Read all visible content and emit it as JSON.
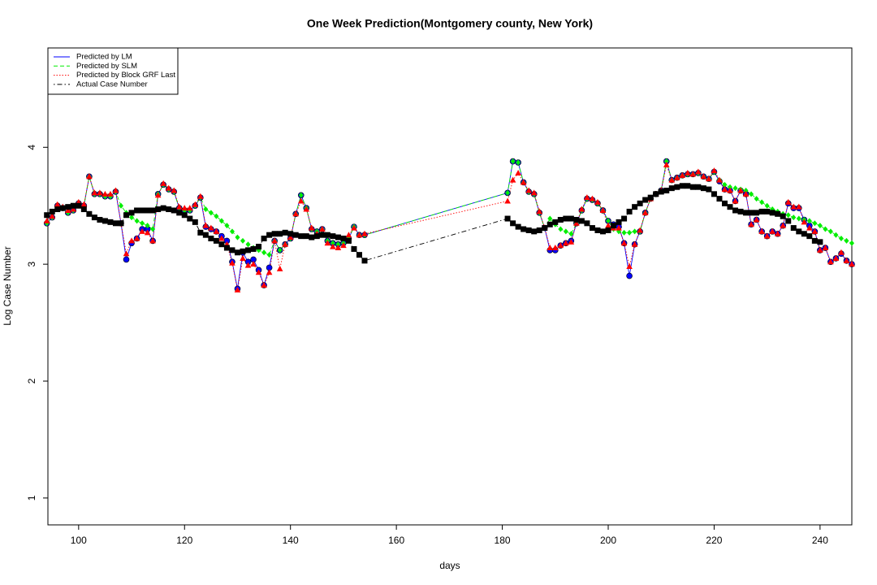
{
  "chart_data": {
    "type": "line",
    "title": "One Week Prediction(Montgomery county, New York)",
    "xlabel": "days",
    "ylabel": "Log Case Number",
    "xlim": [
      94.2,
      246
    ],
    "ylim": [
      0.77,
      4.85
    ],
    "xticks": [
      100,
      120,
      140,
      160,
      180,
      200,
      220,
      240
    ],
    "yticks": [
      1,
      2,
      3,
      4
    ],
    "legend": "top-left",
    "grid": false,
    "x": [
      94,
      95,
      96,
      97,
      98,
      99,
      100,
      101,
      102,
      103,
      104,
      105,
      106,
      107,
      108,
      109,
      110,
      111,
      112,
      113,
      114,
      115,
      116,
      117,
      118,
      119,
      120,
      121,
      122,
      123,
      124,
      125,
      126,
      127,
      128,
      129,
      130,
      131,
      132,
      133,
      134,
      135,
      136,
      137,
      138,
      139,
      140,
      141,
      142,
      143,
      144,
      145,
      146,
      147,
      148,
      149,
      150,
      151,
      152,
      153,
      154,
      181,
      182,
      183,
      184,
      185,
      186,
      187,
      188,
      189,
      190,
      191,
      192,
      193,
      194,
      195,
      196,
      197,
      198,
      199,
      200,
      201,
      202,
      203,
      204,
      205,
      206,
      207,
      208,
      209,
      210,
      211,
      212,
      213,
      214,
      215,
      216,
      217,
      218,
      219,
      220,
      221,
      222,
      223,
      224,
      225,
      226,
      227,
      228,
      229,
      230,
      231,
      232,
      233,
      234,
      235,
      236,
      237,
      238,
      239,
      240,
      241,
      242,
      243,
      244,
      245,
      246
    ],
    "series": [
      {
        "name": "Predicted by LM",
        "color": "#0000ff",
        "dash": "solid",
        "marker": "circle",
        "values": [
          3.35,
          3.4,
          3.5,
          3.48,
          3.44,
          3.46,
          3.52,
          3.5,
          3.75,
          3.6,
          3.6,
          3.58,
          3.58,
          3.62,
          3.35,
          3.04,
          3.18,
          3.22,
          3.3,
          3.3,
          3.2,
          3.6,
          3.68,
          3.64,
          3.62,
          3.48,
          3.46,
          3.46,
          3.5,
          3.57,
          3.32,
          3.3,
          3.28,
          3.24,
          3.2,
          3.02,
          2.79,
          3.1,
          3.02,
          3.04,
          2.95,
          2.82,
          2.97,
          3.2,
          3.12,
          3.17,
          3.22,
          3.43,
          3.59,
          3.48,
          3.3,
          3.28,
          3.3,
          3.2,
          3.18,
          3.17,
          3.18,
          3.22,
          3.32,
          3.25,
          3.25,
          3.61,
          3.88,
          3.87,
          3.7,
          3.62,
          3.6,
          3.44,
          3.31,
          3.12,
          3.12,
          3.16,
          3.18,
          3.2,
          3.35,
          3.46,
          3.56,
          3.55,
          3.52,
          3.46,
          3.37,
          3.34,
          3.32,
          3.18,
          2.9,
          3.17,
          3.28,
          3.44,
          3.56,
          3.6,
          3.63,
          3.88,
          3.72,
          3.74,
          3.76,
          3.77,
          3.77,
          3.78,
          3.75,
          3.73,
          3.79,
          3.71,
          3.64,
          3.63,
          3.54,
          3.63,
          3.6,
          3.34,
          3.38,
          3.28,
          3.24,
          3.28,
          3.26,
          3.33,
          3.52,
          3.48,
          3.48,
          3.38,
          3.33,
          3.28,
          3.12,
          3.14,
          3.02,
          3.05,
          3.09,
          3.03,
          3.0
        ]
      },
      {
        "name": "Predicted by SLM",
        "color": "#00ee00",
        "dash": "dashed",
        "marker": "diamond",
        "values": [
          3.35,
          3.4,
          3.5,
          3.48,
          3.44,
          3.46,
          3.52,
          3.5,
          3.75,
          3.6,
          3.6,
          3.58,
          3.58,
          3.62,
          3.5,
          3.44,
          3.4,
          3.37,
          3.35,
          3.33,
          3.3,
          3.6,
          3.68,
          3.64,
          3.62,
          3.48,
          3.46,
          3.46,
          3.5,
          3.57,
          3.47,
          3.44,
          3.41,
          3.37,
          3.33,
          3.28,
          3.23,
          3.2,
          3.17,
          3.14,
          3.12,
          3.1,
          3.08,
          3.2,
          3.12,
          3.17,
          3.22,
          3.43,
          3.59,
          3.48,
          3.3,
          3.28,
          3.3,
          3.2,
          3.18,
          3.17,
          3.18,
          3.22,
          3.32,
          3.25,
          3.25,
          3.61,
          3.88,
          3.87,
          3.7,
          3.62,
          3.6,
          3.44,
          3.31,
          3.39,
          3.34,
          3.3,
          3.28,
          3.26,
          3.35,
          3.46,
          3.56,
          3.55,
          3.52,
          3.46,
          3.37,
          3.3,
          3.28,
          3.27,
          3.27,
          3.28,
          3.28,
          3.44,
          3.56,
          3.6,
          3.63,
          3.88,
          3.72,
          3.74,
          3.76,
          3.77,
          3.77,
          3.78,
          3.75,
          3.73,
          3.79,
          3.72,
          3.68,
          3.66,
          3.65,
          3.64,
          3.63,
          3.6,
          3.56,
          3.53,
          3.5,
          3.47,
          3.45,
          3.43,
          3.42,
          3.4,
          3.39,
          3.38,
          3.37,
          3.35,
          3.33,
          3.3,
          3.28,
          3.25,
          3.22,
          3.2,
          3.18
        ]
      },
      {
        "name": "Predicted by Block GRF Last",
        "color": "#ff0000",
        "dash": "dotted",
        "marker": "triangle",
        "values": [
          3.37,
          3.41,
          3.51,
          3.49,
          3.46,
          3.47,
          3.53,
          3.51,
          3.75,
          3.61,
          3.61,
          3.6,
          3.6,
          3.63,
          3.35,
          3.09,
          3.2,
          3.22,
          3.28,
          3.27,
          3.2,
          3.59,
          3.69,
          3.65,
          3.63,
          3.49,
          3.48,
          3.48,
          3.51,
          3.58,
          3.33,
          3.31,
          3.28,
          3.22,
          3.17,
          3.01,
          2.78,
          3.05,
          2.99,
          3.0,
          2.93,
          2.82,
          2.93,
          3.2,
          2.96,
          3.17,
          3.23,
          3.43,
          3.54,
          3.47,
          3.31,
          3.26,
          3.3,
          3.18,
          3.15,
          3.14,
          3.16,
          3.25,
          3.31,
          3.25,
          3.26,
          3.54,
          3.72,
          3.78,
          3.7,
          3.63,
          3.61,
          3.45,
          3.31,
          3.14,
          3.14,
          3.16,
          3.18,
          3.19,
          3.35,
          3.47,
          3.57,
          3.56,
          3.53,
          3.46,
          3.33,
          3.31,
          3.31,
          3.18,
          2.98,
          3.17,
          3.29,
          3.44,
          3.56,
          3.6,
          3.63,
          3.85,
          3.72,
          3.74,
          3.76,
          3.78,
          3.77,
          3.79,
          3.75,
          3.73,
          3.8,
          3.72,
          3.64,
          3.63,
          3.54,
          3.63,
          3.6,
          3.34,
          3.38,
          3.28,
          3.24,
          3.28,
          3.26,
          3.33,
          3.53,
          3.49,
          3.49,
          3.36,
          3.31,
          3.28,
          3.12,
          3.14,
          3.02,
          3.05,
          3.1,
          3.03,
          3.0
        ]
      },
      {
        "name": "Actual Case Number",
        "color": "#000000",
        "dash": "dotdash",
        "marker": "square",
        "values": [
          3.42,
          3.45,
          3.47,
          3.48,
          3.49,
          3.5,
          3.5,
          3.47,
          3.43,
          3.4,
          3.38,
          3.37,
          3.36,
          3.35,
          3.35,
          3.42,
          3.44,
          3.46,
          3.46,
          3.46,
          3.46,
          3.47,
          3.48,
          3.47,
          3.46,
          3.44,
          3.42,
          3.39,
          3.36,
          3.27,
          3.25,
          3.22,
          3.2,
          3.17,
          3.14,
          3.12,
          3.1,
          3.11,
          3.12,
          3.13,
          3.15,
          3.22,
          3.25,
          3.26,
          3.26,
          3.27,
          3.26,
          3.25,
          3.24,
          3.24,
          3.23,
          3.24,
          3.25,
          3.25,
          3.24,
          3.23,
          3.22,
          3.2,
          3.13,
          3.08,
          3.03,
          3.39,
          3.35,
          3.32,
          3.3,
          3.29,
          3.28,
          3.29,
          3.31,
          3.34,
          3.36,
          3.38,
          3.39,
          3.39,
          3.38,
          3.37,
          3.35,
          3.31,
          3.29,
          3.28,
          3.29,
          3.33,
          3.36,
          3.39,
          3.45,
          3.49,
          3.52,
          3.55,
          3.57,
          3.6,
          3.62,
          3.63,
          3.65,
          3.66,
          3.67,
          3.67,
          3.66,
          3.66,
          3.65,
          3.64,
          3.6,
          3.56,
          3.52,
          3.49,
          3.46,
          3.45,
          3.44,
          3.44,
          3.44,
          3.45,
          3.45,
          3.44,
          3.43,
          3.41,
          3.37,
          3.31,
          3.28,
          3.26,
          3.24,
          3.2,
          3.19,
          null,
          null,
          null,
          null,
          null,
          null
        ]
      }
    ]
  }
}
